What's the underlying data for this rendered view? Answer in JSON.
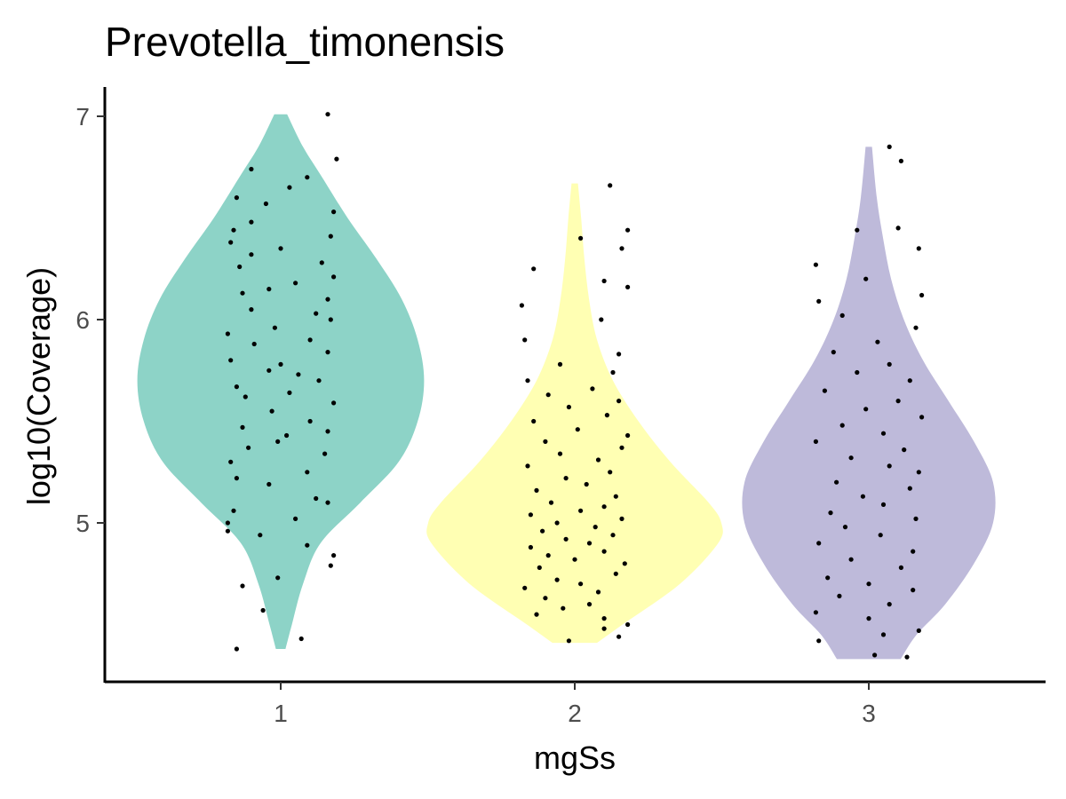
{
  "chart_data": {
    "type": "violin",
    "title": "Prevotella_timonensis",
    "xlabel": "mgSs",
    "ylabel": "log10(Coverage)",
    "categories": [
      "1",
      "2",
      "3"
    ],
    "ylim": [
      4.33,
      7.13
    ],
    "yticks": [
      5,
      6,
      7
    ],
    "grid": false,
    "legend": "none",
    "series": [
      {
        "category": "1",
        "color": "#8dd3c7",
        "range": [
          4.38,
          7.01
        ],
        "density": [
          [
            4.38,
            0.03
          ],
          [
            4.5,
            0.07
          ],
          [
            4.7,
            0.14
          ],
          [
            4.9,
            0.25
          ],
          [
            5.1,
            0.5
          ],
          [
            5.3,
            0.74
          ],
          [
            5.5,
            0.86
          ],
          [
            5.7,
            0.9
          ],
          [
            5.9,
            0.86
          ],
          [
            6.1,
            0.76
          ],
          [
            6.3,
            0.6
          ],
          [
            6.5,
            0.42
          ],
          [
            6.7,
            0.26
          ],
          [
            6.85,
            0.14
          ],
          [
            7.01,
            0.04
          ]
        ],
        "points": [
          [
            4.38,
            -0.15
          ],
          [
            4.43,
            0.07
          ],
          [
            4.57,
            -0.06
          ],
          [
            4.69,
            -0.13
          ],
          [
            4.73,
            -0.01
          ],
          [
            4.79,
            0.17
          ],
          [
            4.84,
            0.18
          ],
          [
            4.89,
            0.09
          ],
          [
            4.94,
            -0.07
          ],
          [
            4.96,
            -0.18
          ],
          [
            5.0,
            -0.18
          ],
          [
            5.02,
            0.05
          ],
          [
            5.06,
            -0.16
          ],
          [
            5.1,
            0.16
          ],
          [
            5.12,
            0.12
          ],
          [
            5.19,
            -0.04
          ],
          [
            5.22,
            -0.15
          ],
          [
            5.25,
            0.09
          ],
          [
            5.3,
            -0.17
          ],
          [
            5.34,
            0.15
          ],
          [
            5.37,
            -0.11
          ],
          [
            5.4,
            -0.01
          ],
          [
            5.43,
            0.02
          ],
          [
            5.45,
            0.16
          ],
          [
            5.47,
            -0.13
          ],
          [
            5.5,
            0.1
          ],
          [
            5.55,
            -0.03
          ],
          [
            5.59,
            0.18
          ],
          [
            5.62,
            -0.12
          ],
          [
            5.64,
            0.03
          ],
          [
            5.67,
            -0.15
          ],
          [
            5.7,
            0.13
          ],
          [
            5.73,
            0.06
          ],
          [
            5.75,
            -0.04
          ],
          [
            5.78,
            0.0
          ],
          [
            5.8,
            -0.17
          ],
          [
            5.84,
            0.16
          ],
          [
            5.88,
            -0.09
          ],
          [
            5.9,
            0.1
          ],
          [
            5.93,
            -0.18
          ],
          [
            5.96,
            -0.02
          ],
          [
            6.0,
            0.17
          ],
          [
            6.03,
            0.12
          ],
          [
            6.05,
            -0.1
          ],
          [
            6.1,
            0.16
          ],
          [
            6.13,
            -0.13
          ],
          [
            6.15,
            -0.04
          ],
          [
            6.18,
            0.05
          ],
          [
            6.21,
            0.18
          ],
          [
            6.26,
            -0.14
          ],
          [
            6.28,
            0.14
          ],
          [
            6.32,
            -0.1
          ],
          [
            6.35,
            0.0
          ],
          [
            6.38,
            -0.17
          ],
          [
            6.41,
            0.17
          ],
          [
            6.44,
            -0.16
          ],
          [
            6.48,
            -0.1
          ],
          [
            6.53,
            0.18
          ],
          [
            6.57,
            -0.05
          ],
          [
            6.6,
            -0.15
          ],
          [
            6.65,
            0.03
          ],
          [
            6.7,
            0.09
          ],
          [
            6.74,
            -0.1
          ],
          [
            6.79,
            0.19
          ],
          [
            7.01,
            0.16
          ]
        ]
      },
      {
        "category": "2",
        "color": "#ffffb3",
        "range": [
          4.41,
          6.67
        ],
        "density": [
          [
            4.41,
            0.14
          ],
          [
            4.5,
            0.3
          ],
          [
            4.7,
            0.66
          ],
          [
            4.9,
            0.9
          ],
          [
            5.0,
            0.92
          ],
          [
            5.1,
            0.84
          ],
          [
            5.3,
            0.6
          ],
          [
            5.5,
            0.4
          ],
          [
            5.7,
            0.24
          ],
          [
            5.9,
            0.14
          ],
          [
            6.1,
            0.09
          ],
          [
            6.3,
            0.06
          ],
          [
            6.5,
            0.04
          ],
          [
            6.67,
            0.02
          ]
        ],
        "points": [
          [
            4.42,
            -0.02
          ],
          [
            4.44,
            0.15
          ],
          [
            4.48,
            0.1
          ],
          [
            4.5,
            0.18
          ],
          [
            4.53,
            0.1
          ],
          [
            4.55,
            -0.13
          ],
          [
            4.58,
            -0.04
          ],
          [
            4.6,
            0.05
          ],
          [
            4.63,
            -0.1
          ],
          [
            4.66,
            0.08
          ],
          [
            4.68,
            -0.17
          ],
          [
            4.7,
            0.02
          ],
          [
            4.72,
            -0.06
          ],
          [
            4.75,
            0.14
          ],
          [
            4.78,
            -0.12
          ],
          [
            4.8,
            0.17
          ],
          [
            4.82,
            0.0
          ],
          [
            4.84,
            -0.09
          ],
          [
            4.86,
            0.1
          ],
          [
            4.88,
            -0.15
          ],
          [
            4.9,
            0.05
          ],
          [
            4.92,
            -0.03
          ],
          [
            4.94,
            0.13
          ],
          [
            4.96,
            -0.11
          ],
          [
            4.98,
            0.07
          ],
          [
            5.0,
            -0.06
          ],
          [
            5.02,
            0.16
          ],
          [
            5.04,
            -0.15
          ],
          [
            5.06,
            0.02
          ],
          [
            5.08,
            0.1
          ],
          [
            5.1,
            -0.08
          ],
          [
            5.13,
            0.14
          ],
          [
            5.16,
            -0.13
          ],
          [
            5.19,
            0.04
          ],
          [
            5.22,
            -0.03
          ],
          [
            5.25,
            0.12
          ],
          [
            5.28,
            -0.16
          ],
          [
            5.31,
            0.08
          ],
          [
            5.34,
            -0.05
          ],
          [
            5.37,
            0.16
          ],
          [
            5.4,
            -0.1
          ],
          [
            5.43,
            0.18
          ],
          [
            5.46,
            0.01
          ],
          [
            5.5,
            -0.14
          ],
          [
            5.53,
            0.11
          ],
          [
            5.57,
            -0.02
          ],
          [
            5.6,
            0.15
          ],
          [
            5.63,
            -0.09
          ],
          [
            5.66,
            0.06
          ],
          [
            5.7,
            -0.16
          ],
          [
            5.74,
            0.13
          ],
          [
            5.78,
            -0.05
          ],
          [
            5.83,
            0.15
          ],
          [
            5.9,
            -0.17
          ],
          [
            6.0,
            0.09
          ],
          [
            6.07,
            -0.18
          ],
          [
            6.16,
            0.18
          ],
          [
            6.19,
            0.1
          ],
          [
            6.25,
            -0.14
          ],
          [
            6.35,
            0.16
          ],
          [
            6.4,
            0.02
          ],
          [
            6.44,
            0.18
          ],
          [
            6.66,
            0.12
          ]
        ]
      },
      {
        "category": "3",
        "color": "#bebada",
        "range": [
          4.33,
          6.85
        ],
        "density": [
          [
            4.33,
            0.2
          ],
          [
            4.45,
            0.3
          ],
          [
            4.6,
            0.48
          ],
          [
            4.8,
            0.66
          ],
          [
            5.0,
            0.78
          ],
          [
            5.2,
            0.78
          ],
          [
            5.4,
            0.66
          ],
          [
            5.6,
            0.5
          ],
          [
            5.8,
            0.34
          ],
          [
            6.0,
            0.22
          ],
          [
            6.2,
            0.14
          ],
          [
            6.4,
            0.09
          ],
          [
            6.6,
            0.05
          ],
          [
            6.85,
            0.02
          ]
        ],
        "points": [
          [
            4.34,
            0.13
          ],
          [
            4.35,
            0.02
          ],
          [
            4.42,
            -0.17
          ],
          [
            4.45,
            0.05
          ],
          [
            4.47,
            0.17
          ],
          [
            4.53,
            0.0
          ],
          [
            4.56,
            -0.18
          ],
          [
            4.6,
            0.07
          ],
          [
            4.64,
            -0.1
          ],
          [
            4.67,
            0.15
          ],
          [
            4.7,
            0.0
          ],
          [
            4.73,
            -0.14
          ],
          [
            4.78,
            0.11
          ],
          [
            4.82,
            -0.06
          ],
          [
            4.86,
            0.15
          ],
          [
            4.9,
            -0.17
          ],
          [
            4.94,
            0.04
          ],
          [
            4.98,
            -0.08
          ],
          [
            5.02,
            0.16
          ],
          [
            5.05,
            -0.13
          ],
          [
            5.09,
            0.05
          ],
          [
            5.13,
            -0.02
          ],
          [
            5.17,
            0.14
          ],
          [
            5.2,
            -0.11
          ],
          [
            5.25,
            0.17
          ],
          [
            5.28,
            0.07
          ],
          [
            5.32,
            -0.06
          ],
          [
            5.36,
            0.12
          ],
          [
            5.4,
            -0.18
          ],
          [
            5.44,
            0.05
          ],
          [
            5.48,
            -0.09
          ],
          [
            5.52,
            0.18
          ],
          [
            5.56,
            -0.01
          ],
          [
            5.6,
            0.1
          ],
          [
            5.65,
            -0.15
          ],
          [
            5.7,
            0.14
          ],
          [
            5.74,
            -0.04
          ],
          [
            5.78,
            0.07
          ],
          [
            5.84,
            -0.12
          ],
          [
            5.89,
            0.03
          ],
          [
            5.96,
            0.16
          ],
          [
            6.02,
            -0.09
          ],
          [
            6.09,
            -0.17
          ],
          [
            6.12,
            0.18
          ],
          [
            6.2,
            -0.01
          ],
          [
            6.27,
            -0.18
          ],
          [
            6.35,
            0.17
          ],
          [
            6.44,
            -0.04
          ],
          [
            6.45,
            0.1
          ],
          [
            6.78,
            0.11
          ],
          [
            6.85,
            0.07
          ]
        ]
      }
    ]
  }
}
